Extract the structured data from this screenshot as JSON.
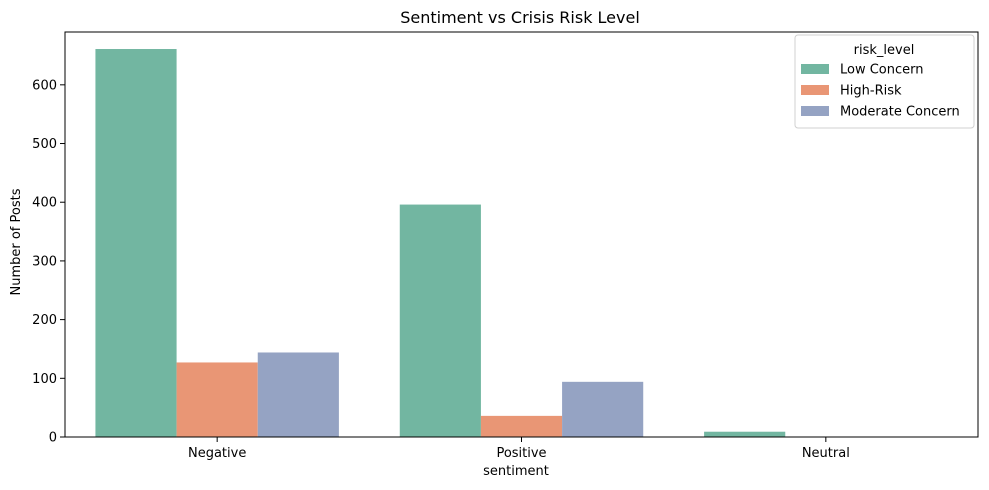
{
  "chart_data": {
    "type": "bar",
    "title": "Sentiment vs Crisis Risk Level",
    "xlabel": "sentiment",
    "ylabel": "Number of Posts",
    "categories": [
      "Negative",
      "Positive",
      "Neutral"
    ],
    "ylim": [
      0,
      690
    ],
    "yticks": [
      0,
      100,
      200,
      300,
      400,
      500,
      600
    ],
    "grid": false,
    "legend": {
      "title": "risk_level",
      "placement": "top-right"
    },
    "series": [
      {
        "name": "Low Concern",
        "color": "#72b6a1",
        "values": [
          661,
          396,
          9
        ]
      },
      {
        "name": "High-Risk",
        "color": "#e99675",
        "values": [
          127,
          36,
          0
        ]
      },
      {
        "name": "Moderate Concern",
        "color": "#95a3c3",
        "values": [
          144,
          94,
          0
        ]
      }
    ]
  }
}
